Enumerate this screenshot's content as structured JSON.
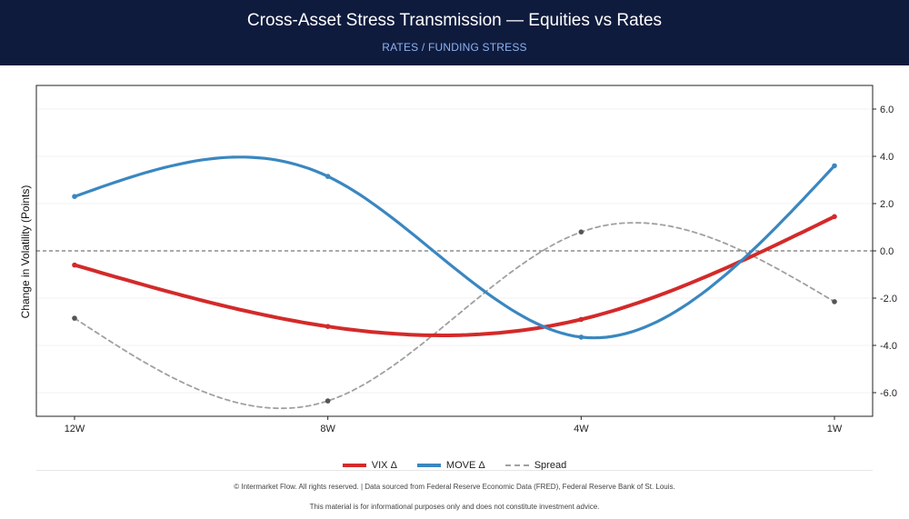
{
  "header": {
    "title": "Cross-Asset Stress Transmission — Equities vs Rates",
    "subtitle": "RATES / FUNDING STRESS"
  },
  "colors": {
    "header_bg": "#0f1b3d",
    "vix": "#d32a2a",
    "move": "#3a87c0",
    "spread": "#a0a0a0"
  },
  "chart_data": {
    "type": "line",
    "categories": [
      "12W",
      "8W",
      "4W",
      "1W"
    ],
    "series": [
      {
        "name": "VIX Δ",
        "values": [
          -0.6,
          -3.2,
          -2.9,
          1.45
        ]
      },
      {
        "name": "MOVE Δ",
        "values": [
          2.3,
          3.15,
          -3.65,
          3.6
        ]
      },
      {
        "name": "Spread",
        "values": [
          -2.85,
          -6.35,
          0.8,
          -2.15
        ]
      }
    ],
    "ylabel": "Change in Volatility (Points)",
    "ylim": [
      -7.0,
      7.0
    ],
    "yticks": [
      "-6.0",
      "-4.0",
      "-2.0",
      "0.0",
      "2.0",
      "4.0",
      "6.0"
    ],
    "ytick_values": [
      -6,
      -4,
      -2,
      0,
      2,
      4,
      6
    ],
    "y_axis_side": "right",
    "zero_line": true,
    "grid": true,
    "legend_position": "bottom-center"
  },
  "footer": {
    "line1": "© Intermarket Flow. All rights reserved.  |  Data sourced from Federal Reserve Economic Data (FRED), Federal Reserve Bank of St. Louis.",
    "line2": "This material is for informational purposes only and does not constitute investment advice."
  }
}
